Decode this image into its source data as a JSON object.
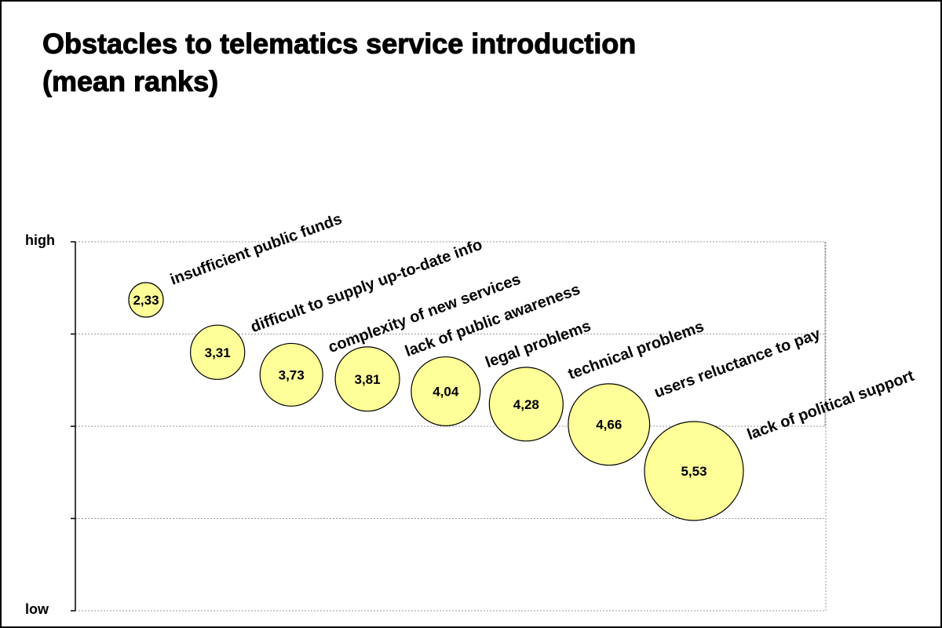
{
  "title_line1": "Obstacles to telematics service introduction",
  "title_line2": "(mean ranks)",
  "chart_data": {
    "type": "bubble",
    "y_axis_labels": {
      "top": "high",
      "bottom": "low"
    },
    "grid": true,
    "bubble_color": "#ffff99",
    "series": [
      {
        "label": "insufficient public funds",
        "value": 2.33,
        "value_label": "2,33"
      },
      {
        "label": "difficult to supply up-to-date info",
        "value": 3.31,
        "value_label": "3,31"
      },
      {
        "label": "complexity of new services",
        "value": 3.73,
        "value_label": "3,73"
      },
      {
        "label": "lack of public awareness",
        "value": 3.81,
        "value_label": "3,81"
      },
      {
        "label": "legal problems",
        "value": 4.04,
        "value_label": "4,04"
      },
      {
        "label": "technical problems",
        "value": 4.28,
        "value_label": "4,28"
      },
      {
        "label": "users reluctance to pay",
        "value": 4.66,
        "value_label": "4,66"
      },
      {
        "label": "lack of political support",
        "value": 5.53,
        "value_label": "5,53"
      }
    ]
  }
}
